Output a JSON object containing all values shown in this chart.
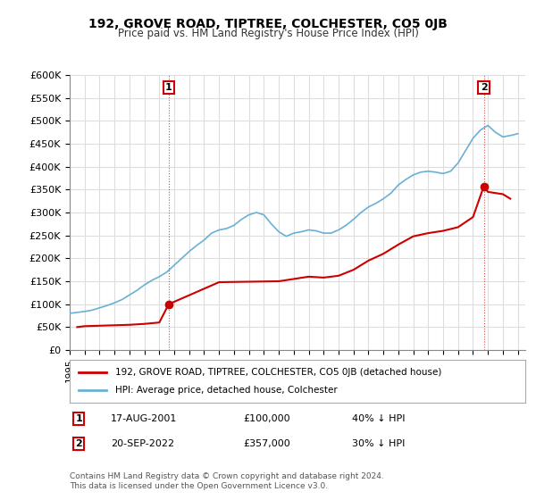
{
  "title": "192, GROVE ROAD, TIPTREE, COLCHESTER, CO5 0JB",
  "subtitle": "Price paid vs. HM Land Registry's House Price Index (HPI)",
  "hpi_color": "#6ab0d4",
  "price_color": "#cc0000",
  "annotation_color": "#cc0000",
  "background_color": "#ffffff",
  "grid_color": "#dddddd",
  "ylim": [
    0,
    600000
  ],
  "ytick_values": [
    0,
    50000,
    100000,
    150000,
    200000,
    250000,
    300000,
    350000,
    400000,
    450000,
    500000,
    550000,
    600000
  ],
  "ytick_labels": [
    "£0",
    "£50K",
    "£100K",
    "£150K",
    "£200K",
    "£250K",
    "£300K",
    "£350K",
    "£400K",
    "£450K",
    "£500K",
    "£550K",
    "£600K"
  ],
  "xlim_start": 1995.0,
  "xlim_end": 2025.5,
  "xtick_years": [
    1995,
    1996,
    1997,
    1998,
    1999,
    2000,
    2001,
    2002,
    2003,
    2004,
    2005,
    2006,
    2007,
    2008,
    2009,
    2010,
    2011,
    2012,
    2013,
    2014,
    2015,
    2016,
    2017,
    2018,
    2019,
    2020,
    2021,
    2022,
    2023,
    2024,
    2025
  ],
  "point1_x": 2001.63,
  "point1_y": 100000,
  "point1_label": "1",
  "point2_x": 2022.72,
  "point2_y": 357000,
  "point2_label": "2",
  "legend_line1": "192, GROVE ROAD, TIPTREE, COLCHESTER, CO5 0JB (detached house)",
  "legend_line2": "HPI: Average price, detached house, Colchester",
  "annotation1_date": "17-AUG-2001",
  "annotation1_price": "£100,000",
  "annotation1_hpi": "40% ↓ HPI",
  "annotation2_date": "20-SEP-2022",
  "annotation2_price": "£357,000",
  "annotation2_hpi": "30% ↓ HPI",
  "footer": "Contains HM Land Registry data © Crown copyright and database right 2024.\nThis data is licensed under the Open Government Licence v3.0.",
  "hpi_x": [
    1995.0,
    1995.5,
    1996.0,
    1996.5,
    1997.0,
    1997.5,
    1998.0,
    1998.5,
    1999.0,
    1999.5,
    2000.0,
    2000.5,
    2001.0,
    2001.5,
    2002.0,
    2002.5,
    2003.0,
    2003.5,
    2004.0,
    2004.5,
    2005.0,
    2005.5,
    2006.0,
    2006.5,
    2007.0,
    2007.5,
    2008.0,
    2008.5,
    2009.0,
    2009.5,
    2010.0,
    2010.5,
    2011.0,
    2011.5,
    2012.0,
    2012.5,
    2013.0,
    2013.5,
    2014.0,
    2014.5,
    2015.0,
    2015.5,
    2016.0,
    2016.5,
    2017.0,
    2017.5,
    2018.0,
    2018.5,
    2019.0,
    2019.5,
    2020.0,
    2020.5,
    2021.0,
    2021.5,
    2022.0,
    2022.5,
    2023.0,
    2023.5,
    2024.0,
    2024.5,
    2025.0
  ],
  "hpi_y": [
    80000,
    82000,
    84000,
    87000,
    92000,
    97000,
    103000,
    110000,
    120000,
    130000,
    142000,
    152000,
    160000,
    170000,
    185000,
    200000,
    215000,
    228000,
    240000,
    255000,
    262000,
    265000,
    272000,
    285000,
    295000,
    300000,
    295000,
    275000,
    258000,
    248000,
    255000,
    258000,
    262000,
    260000,
    255000,
    255000,
    262000,
    272000,
    285000,
    300000,
    312000,
    320000,
    330000,
    342000,
    360000,
    372000,
    382000,
    388000,
    390000,
    388000,
    385000,
    390000,
    408000,
    435000,
    462000,
    480000,
    490000,
    475000,
    465000,
    468000,
    472000
  ],
  "price_x": [
    1995.5,
    1996.0,
    1997.0,
    1998.0,
    1999.0,
    2000.0,
    2001.0,
    2001.63,
    2005.0,
    2009.0,
    2010.0,
    2011.0,
    2012.0,
    2013.0,
    2014.0,
    2015.0,
    2016.0,
    2017.0,
    2018.0,
    2019.0,
    2020.0,
    2021.0,
    2022.0,
    2022.72,
    2023.0,
    2024.0,
    2024.5
  ],
  "price_y": [
    50000,
    52000,
    53000,
    54000,
    55000,
    57000,
    60000,
    100000,
    148000,
    150000,
    155000,
    160000,
    158000,
    162000,
    175000,
    195000,
    210000,
    230000,
    248000,
    255000,
    260000,
    268000,
    290000,
    357000,
    345000,
    340000,
    330000
  ]
}
